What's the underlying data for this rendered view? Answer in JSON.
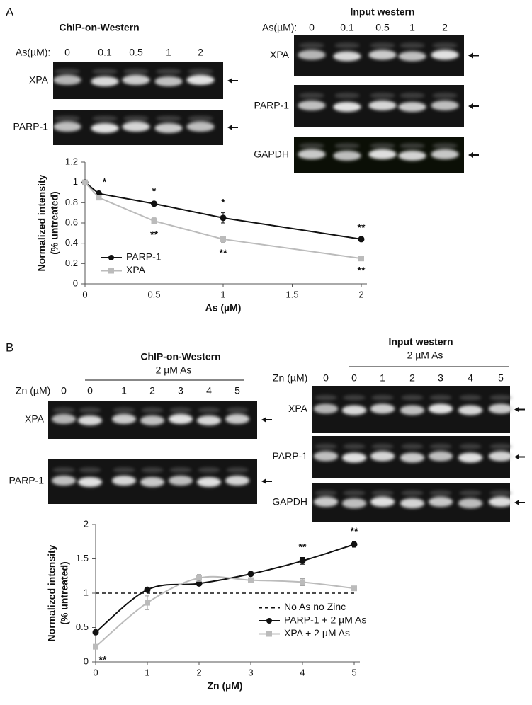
{
  "panel_labels": [
    "A",
    "B"
  ],
  "blots": [
    {
      "title": "ChIP-on-Western",
      "dose_label": "As(µM):",
      "lanes": [
        "0",
        "0.1",
        "0.5",
        "1",
        "2"
      ],
      "rows": [
        "XPA",
        "PARP-1"
      ]
    },
    {
      "title": "Input western",
      "dose_label": "As(µM):",
      "lanes": [
        "0",
        "0.1",
        "0.5",
        "1",
        "2"
      ],
      "rows": [
        "XPA",
        "PARP-1",
        "GAPDH"
      ]
    },
    {
      "title": "ChIP-on-Western",
      "treatment": "2 µM  As",
      "dose_label": "Zn (µM)",
      "lanes": [
        "0",
        "0",
        "1",
        "2",
        "3",
        "4",
        "5"
      ],
      "rows": [
        "XPA",
        "PARP-1"
      ]
    },
    {
      "title": "Input western",
      "treatment": "2 µM  As",
      "dose_label": "Zn (µM)",
      "lanes": [
        "0",
        "0",
        "1",
        "2",
        "3",
        "4",
        "5"
      ],
      "rows": [
        "XPA",
        "PARP-1",
        "GAPDH"
      ]
    }
  ],
  "chart_data": [
    {
      "type": "line",
      "xlabel": "As (µM)",
      "ylabel": [
        "Normalized intensity",
        "(% untreated)"
      ],
      "x": [
        0,
        0.1,
        0.5,
        1,
        2
      ],
      "xlim": [
        0,
        2
      ],
      "xticks": [
        0,
        0.5,
        1,
        1.5,
        2
      ],
      "ylim": [
        0,
        1.2
      ],
      "yticks": [
        0,
        0.2,
        0.4,
        0.6,
        0.8,
        1,
        1.2
      ],
      "legend": "lower left",
      "smooth": false,
      "series": [
        {
          "name": "PARP-1",
          "color": "#111111",
          "marker": "circle",
          "values": [
            1,
            0.89,
            0.79,
            0.65,
            0.44
          ],
          "errors": [
            0,
            0.01,
            0.02,
            0.05,
            0.01
          ],
          "significance": [
            null,
            "*",
            "*",
            "*",
            "**"
          ]
        },
        {
          "name": "XPA",
          "color": "#bbbbbb",
          "marker": "square",
          "values": [
            1,
            0.85,
            0.62,
            0.44,
            0.25
          ],
          "errors": [
            0,
            0.01,
            0.03,
            0.03,
            0.01
          ],
          "significance": [
            null,
            null,
            "**",
            "**",
            "**"
          ]
        }
      ]
    },
    {
      "type": "line",
      "xlabel": "Zn (µM)",
      "ylabel": [
        "Normalized intensity",
        "(% untreated)"
      ],
      "x": [
        0,
        1,
        2,
        3,
        4,
        5
      ],
      "xlim": [
        0,
        5
      ],
      "xticks": [
        0,
        1,
        2,
        3,
        4,
        5
      ],
      "ylim": [
        0,
        2
      ],
      "yticks": [
        0,
        0.5,
        1,
        1.5,
        2
      ],
      "legend": "lower right",
      "smooth": true,
      "reference_line": {
        "name": "No As no Zinc",
        "y": 1,
        "style": "dashed"
      },
      "series": [
        {
          "name": "PARP-1 + 2 µM  As",
          "color": "#111111",
          "marker": "circle",
          "values": [
            0.43,
            1.05,
            1.14,
            1.28,
            1.47,
            1.71
          ],
          "errors": [
            0.02,
            0.02,
            0.02,
            0.02,
            0.05,
            0.04
          ],
          "significance": [
            null,
            null,
            null,
            null,
            "**",
            "**"
          ]
        },
        {
          "name": "XPA + 2 µM  As",
          "color": "#bbbbbb",
          "marker": "square",
          "values": [
            0.22,
            0.86,
            1.22,
            1.19,
            1.16,
            1.07
          ],
          "errors": [
            0.03,
            0.1,
            0.05,
            0.03,
            0.05,
            0.02
          ],
          "significance": [
            "**",
            null,
            null,
            null,
            null,
            null
          ]
        }
      ]
    }
  ]
}
